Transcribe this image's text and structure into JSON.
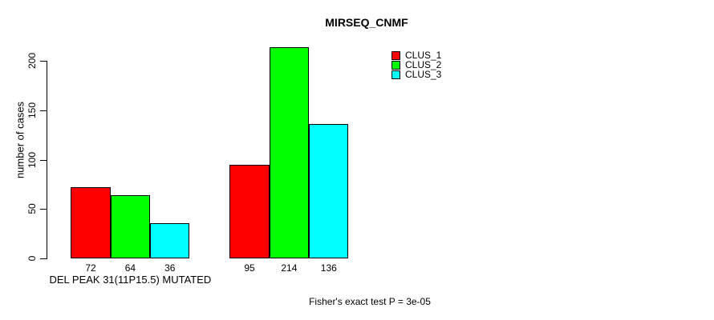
{
  "title": "MIRSEQ_CNMF",
  "chart_data": {
    "type": "bar",
    "title": "MIRSEQ_CNMF",
    "ylabel": "number of cases",
    "yticks": [
      0,
      50,
      100,
      150,
      200
    ],
    "ylim": [
      0,
      220
    ],
    "grid": false,
    "legend_position": "top-right",
    "categories": [
      "DEL PEAK 31(11P15.5) MUTATED",
      ""
    ],
    "series": [
      {
        "name": "CLUS_1",
        "color": "#ff0000",
        "values": [
          72,
          95
        ]
      },
      {
        "name": "CLUS_2",
        "color": "#00ff00",
        "values": [
          64,
          214
        ]
      },
      {
        "name": "CLUS_3",
        "color": "#00ffff",
        "values": [
          36,
          136
        ]
      }
    ],
    "bar_value_labels": [
      [
        72,
        64,
        36
      ],
      [
        95,
        214,
        136
      ]
    ]
  },
  "annotations": {
    "fisher_note": "Fisher's exact test P = 3e-05"
  },
  "colors": {
    "background": "#ffffff",
    "axis": "#000000",
    "text": "#000000",
    "bar_border": "#000000"
  }
}
